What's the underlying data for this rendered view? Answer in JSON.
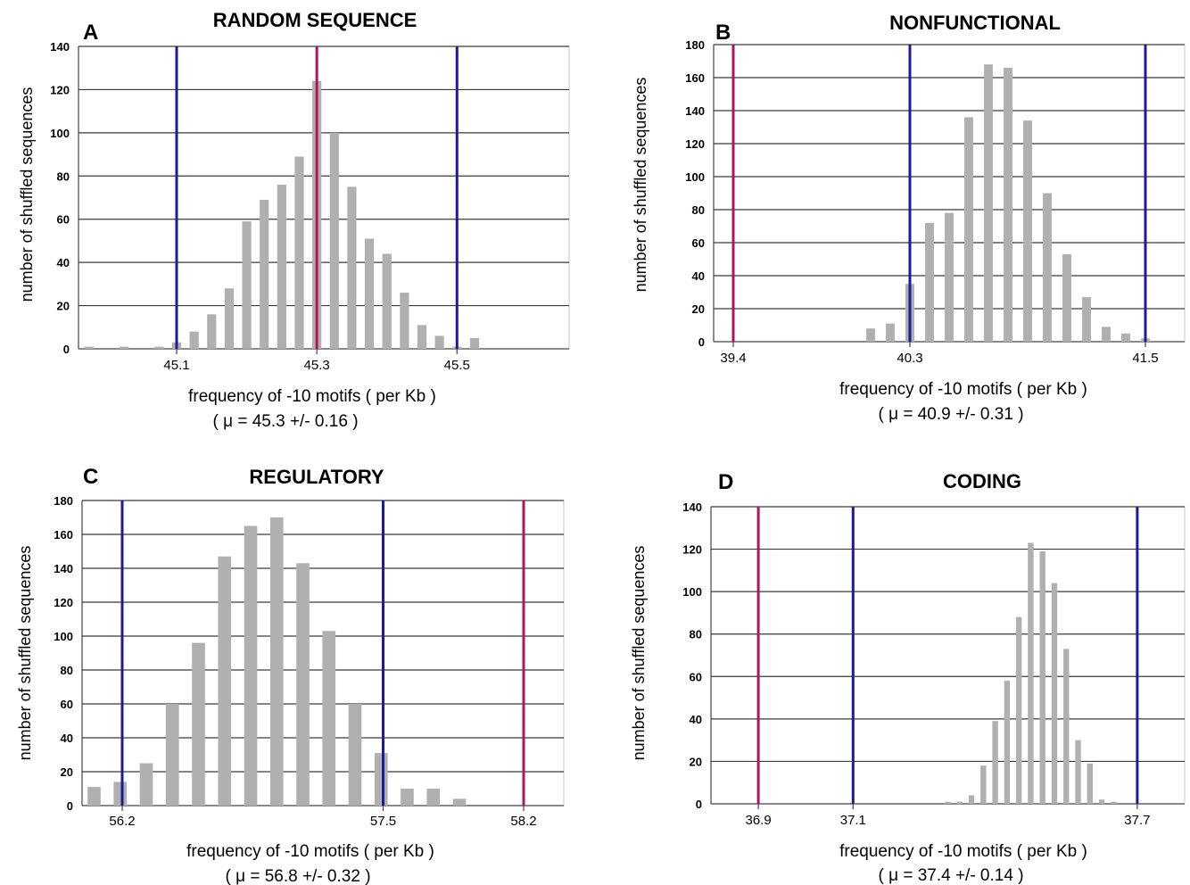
{
  "colors": {
    "bar": "#b0b0b0",
    "blue_line": "#1c1c9a",
    "magenta_line": "#b0155a",
    "grid": "#3a3a3a"
  },
  "chart_data": [
    {
      "type": "bar",
      "panel": "A",
      "title": "RANDOM SEQUENCE",
      "ylabel": "number of shuffled sequences",
      "xlabel": "frequency of -10 motifs ( per Kb )",
      "subtitle": "( μ = 45.3 +/- 0.16 )",
      "ylim": [
        0,
        140
      ],
      "yticks": [
        0,
        20,
        40,
        60,
        80,
        100,
        120,
        140
      ],
      "xlim": [
        44.96,
        45.66
      ],
      "xticks": [
        {
          "value": 45.1,
          "label": "45.1"
        },
        {
          "value": 45.3,
          "label": "45.3"
        },
        {
          "value": 45.5,
          "label": "45.5"
        }
      ],
      "grid": true,
      "bar_width": 0.013,
      "x": [
        44.975,
        45.0,
        45.025,
        45.05,
        45.075,
        45.1,
        45.125,
        45.15,
        45.175,
        45.2,
        45.225,
        45.25,
        45.275,
        45.3,
        45.325,
        45.35,
        45.375,
        45.4,
        45.425,
        45.45,
        45.475,
        45.5,
        45.525,
        45.55,
        45.575,
        45.6,
        45.625,
        45.65
      ],
      "values": [
        1,
        0,
        1,
        0,
        1,
        3,
        8,
        16,
        28,
        59,
        69,
        76,
        89,
        124,
        100,
        75,
        51,
        44,
        26,
        11,
        6,
        1,
        5,
        0,
        0,
        0,
        0,
        0
      ],
      "vlines": [
        {
          "x": 45.1,
          "color": "blue"
        },
        {
          "x": 45.3,
          "color": "magenta"
        },
        {
          "x": 45.5,
          "color": "blue"
        }
      ]
    },
    {
      "type": "bar",
      "panel": "B",
      "title": "NONFUNCTIONAL",
      "ylabel": "number of shuffled sequences",
      "xlabel": "frequency of -10 motifs ( per Kb )",
      "subtitle": "( μ = 40.9 +/- 0.31 )",
      "ylim": [
        0,
        180
      ],
      "yticks": [
        0,
        20,
        40,
        60,
        80,
        100,
        120,
        140,
        160,
        180
      ],
      "xlim": [
        39.3,
        41.7
      ],
      "xticks": [
        {
          "value": 39.4,
          "label": "39.4"
        },
        {
          "value": 40.3,
          "label": "40.3"
        },
        {
          "value": 41.5,
          "label": "41.5"
        }
      ],
      "grid": true,
      "bar_width": 0.045,
      "x": [
        39.5,
        39.6,
        39.7,
        39.8,
        39.9,
        40.0,
        40.1,
        40.2,
        40.3,
        40.4,
        40.5,
        40.6,
        40.7,
        40.8,
        40.9,
        41.0,
        41.1,
        41.2,
        41.3,
        41.4,
        41.5,
        41.6,
        41.7
      ],
      "values": [
        0,
        0,
        0,
        0,
        0,
        0,
        8,
        11,
        35,
        72,
        78,
        136,
        168,
        166,
        134,
        90,
        53,
        27,
        9,
        5,
        2,
        0,
        0
      ],
      "vlines": [
        {
          "x": 39.4,
          "color": "magenta"
        },
        {
          "x": 40.3,
          "color": "blue"
        },
        {
          "x": 41.5,
          "color": "blue"
        }
      ]
    },
    {
      "type": "bar",
      "panel": "C",
      "title": "REGULATORY",
      "ylabel": "number of shuffled sequences",
      "xlabel": "frequency of -10 motifs ( per Kb )",
      "subtitle": "( μ = 56.8 +/- 0.32 )",
      "ylim": [
        0,
        180
      ],
      "yticks": [
        0,
        20,
        40,
        60,
        80,
        100,
        120,
        140,
        160,
        180
      ],
      "xlim": [
        56.0,
        58.4
      ],
      "xticks": [
        {
          "value": 56.2,
          "label": "56.2"
        },
        {
          "value": 57.5,
          "label": "57.5"
        },
        {
          "value": 58.2,
          "label": "58.2"
        }
      ],
      "grid": true,
      "bar_width": 0.065,
      "x": [
        56.06,
        56.19,
        56.32,
        56.45,
        56.58,
        56.71,
        56.84,
        56.97,
        57.1,
        57.23,
        57.36,
        57.49,
        57.62,
        57.75,
        57.88
      ],
      "values": [
        11,
        14,
        25,
        60,
        96,
        147,
        165,
        170,
        143,
        103,
        60,
        31,
        10,
        10,
        4
      ],
      "vlines": [
        {
          "x": 56.2,
          "color": "blue"
        },
        {
          "x": 57.5,
          "color": "blue"
        },
        {
          "x": 58.2,
          "color": "magenta"
        }
      ]
    },
    {
      "type": "bar",
      "panel": "D",
      "title": "CODING",
      "ylabel": "number of shuffled sequences",
      "xlabel": "frequency of -10 motifs ( per Kb )",
      "subtitle": "( μ = 37.4 +/- 0.14 )",
      "ylim": [
        0,
        140
      ],
      "yticks": [
        0,
        20,
        40,
        60,
        80,
        100,
        120,
        140
      ],
      "xlim": [
        36.8,
        37.8
      ],
      "xticks": [
        {
          "value": 36.9,
          "label": "36.9"
        },
        {
          "value": 37.1,
          "label": "37.1"
        },
        {
          "value": 37.7,
          "label": "37.7"
        }
      ],
      "grid": true,
      "bar_width": 0.012,
      "x": [
        36.975,
        37.0,
        37.025,
        37.05,
        37.075,
        37.1,
        37.125,
        37.15,
        37.175,
        37.2,
        37.225,
        37.25,
        37.275,
        37.3,
        37.325,
        37.35,
        37.375,
        37.4,
        37.425,
        37.45,
        37.475,
        37.5,
        37.525,
        37.55,
        37.575,
        37.6,
        37.625,
        37.65,
        37.675,
        37.7,
        37.725,
        37.75,
        37.775
      ],
      "values": [
        0,
        0,
        0,
        0,
        0,
        0,
        0,
        0,
        0,
        0,
        0,
        0,
        0,
        1,
        1,
        4,
        18,
        39,
        58,
        88,
        123,
        119,
        104,
        73,
        30,
        19,
        2,
        1,
        0,
        0,
        0,
        0,
        0
      ],
      "vlines": [
        {
          "x": 36.9,
          "color": "magenta"
        },
        {
          "x": 37.1,
          "color": "blue"
        },
        {
          "x": 37.7,
          "color": "blue"
        }
      ]
    }
  ]
}
